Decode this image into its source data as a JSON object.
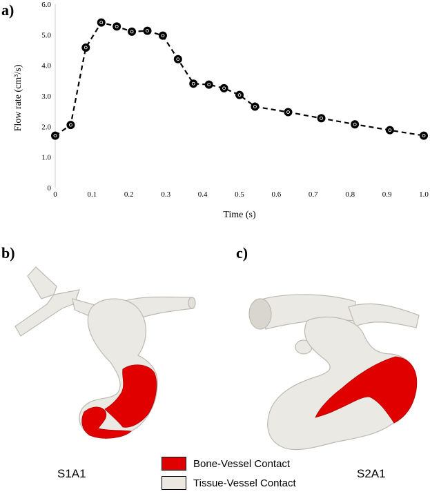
{
  "panels": {
    "a": "a)",
    "b": "b)",
    "c": "c)"
  },
  "chart_data": {
    "type": "line",
    "xlabel": "Time (s)",
    "ylabel": "Flow rate (cm³/s)",
    "xlim": [
      0,
      1.0
    ],
    "ylim": [
      0,
      6.0
    ],
    "x_ticks": [
      "0",
      "0.1",
      "0.2",
      "0.3",
      "0.4",
      "0.5",
      "0.6",
      "0.7",
      "0.8",
      "0.9",
      "1.0"
    ],
    "y_ticks": [
      "0",
      "1.0",
      "2.0",
      "3.0",
      "4.0",
      "5.0",
      "6.0"
    ],
    "grid": false,
    "line_style": "dashed",
    "marker": "filled circle",
    "series": [
      {
        "x": [
          0,
          0.042,
          0.083,
          0.125,
          0.167,
          0.208,
          0.25,
          0.292,
          0.333,
          0.375,
          0.417,
          0.458,
          0.5,
          0.542,
          0.632,
          0.722,
          0.813,
          0.908,
          1.0
        ],
        "y": [
          1.7,
          2.05,
          4.58,
          5.4,
          5.27,
          5.1,
          5.13,
          4.97,
          4.2,
          3.4,
          3.37,
          3.25,
          3.03,
          2.65,
          2.47,
          2.27,
          2.07,
          1.88,
          1.7
        ]
      }
    ]
  },
  "models": {
    "left": {
      "name": "S1A1"
    },
    "right": {
      "name": "S2A1"
    }
  },
  "legend": [
    {
      "label": "Bone-Vessel Contact",
      "color": "#e00000"
    },
    {
      "label": "Tissue-Vessel Contact",
      "color": "#ece8e1"
    }
  ],
  "colors": {
    "vessel": "#ebe9e4",
    "vessel_shade": "#cfccc6",
    "bone_contact": "#e00000"
  }
}
